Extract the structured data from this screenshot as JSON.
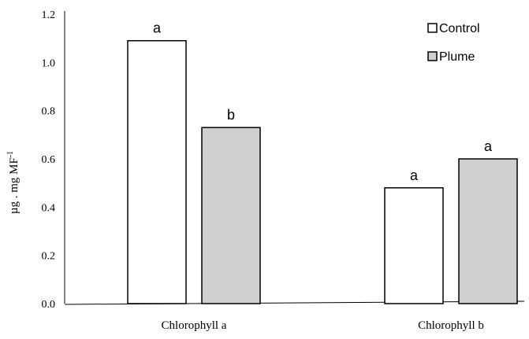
{
  "chart_data": {
    "type": "bar",
    "categories": [
      "Chlorophyll a",
      "Chlorophyll b"
    ],
    "series": [
      {
        "name": "Control",
        "values": [
          1.09,
          0.48
        ],
        "labels": [
          "a",
          "a"
        ],
        "color": "#ffffff"
      },
      {
        "name": "Plume",
        "values": [
          0.73,
          0.6
        ],
        "labels": [
          "b",
          "a"
        ],
        "color": "#d0ced0"
      }
    ],
    "ylabel_main": "µg . mg MF",
    "ylabel_sup": "-1",
    "yticks": [
      "0.0",
      "0.2",
      "0.4",
      "0.6",
      "0.8",
      "1.0",
      "1.2"
    ],
    "ylim": [
      0,
      1.2
    ],
    "grid": false,
    "legend_position": "top-right"
  }
}
